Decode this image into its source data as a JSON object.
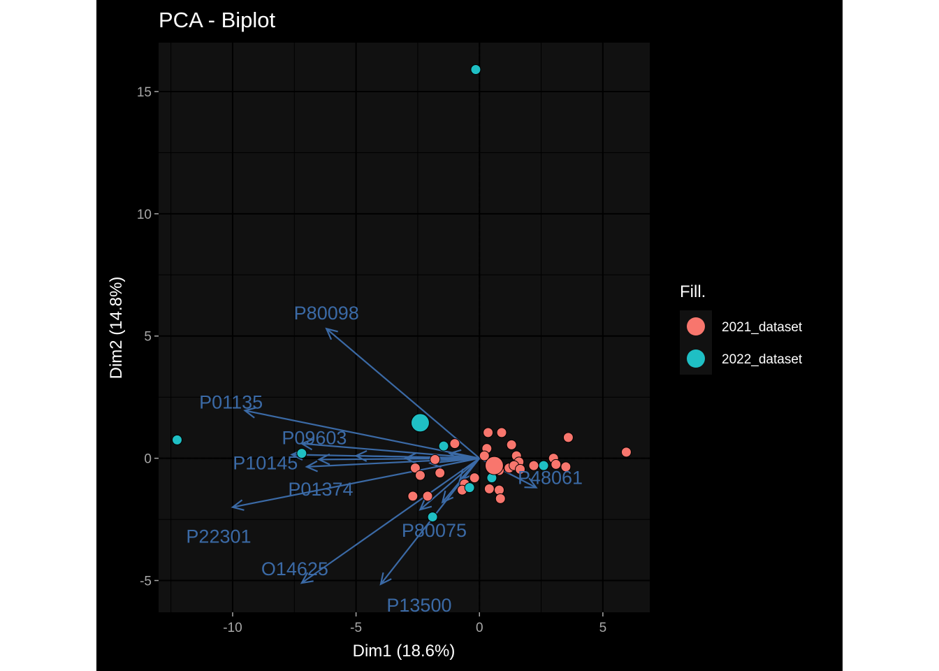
{
  "chart_data": {
    "type": "scatter",
    "title": "PCA - Biplot",
    "xlabel": "Dim1 (18.6%)",
    "ylabel": "Dim2 (14.8%)",
    "xlim": [
      -13.0,
      6.9
    ],
    "ylim": [
      -6.3,
      17.0
    ],
    "x_ticks": [
      -10,
      -5,
      0,
      5
    ],
    "x_tick_labels": [
      "-10",
      "-5",
      "0",
      "5"
    ],
    "y_ticks": [
      -5,
      0,
      5,
      10,
      15
    ],
    "y_tick_labels": [
      "-5",
      "0",
      "5",
      "10",
      "15"
    ],
    "grid": true,
    "legend": {
      "title": "Fill.",
      "position": "right",
      "entries": [
        {
          "label": "2021_dataset",
          "color": "#f8766d"
        },
        {
          "label": "2022_dataset",
          "color": "#1fbfc4"
        }
      ]
    },
    "colors": {
      "panel": "#111111",
      "arrow": "#3b6aa6",
      "grid": "#000000"
    },
    "series": [
      {
        "name": "2021_dataset",
        "color": "#f8766d",
        "points": [
          [
            0.35,
            1.05
          ],
          [
            0.9,
            1.05
          ],
          [
            1.3,
            0.55
          ],
          [
            3.6,
            0.85
          ],
          [
            5.95,
            0.25
          ],
          [
            -1.0,
            0.6
          ],
          [
            0.3,
            0.4
          ],
          [
            1.5,
            0.1
          ],
          [
            1.6,
            -0.15
          ],
          [
            2.2,
            -0.3
          ],
          [
            3.0,
            0.0
          ],
          [
            3.1,
            -0.25
          ],
          [
            3.5,
            -0.35
          ],
          [
            0.8,
            -0.5
          ],
          [
            1.2,
            -0.4
          ],
          [
            1.4,
            -0.3
          ],
          [
            1.65,
            -0.45
          ],
          [
            0.2,
            0.1
          ],
          [
            -2.6,
            -0.4
          ],
          [
            -2.4,
            -0.7
          ],
          [
            -1.6,
            -0.6
          ],
          [
            -0.2,
            -0.8
          ],
          [
            0.4,
            -1.25
          ],
          [
            0.8,
            -1.3
          ],
          [
            0.85,
            -1.65
          ],
          [
            -0.6,
            -1.05
          ],
          [
            -0.7,
            -1.3
          ],
          [
            -2.7,
            -1.55
          ],
          [
            -2.1,
            -1.55
          ],
          [
            -1.8,
            -0.05
          ]
        ],
        "sizes": [
          1,
          1,
          1,
          1,
          1,
          1,
          1,
          1,
          1,
          1,
          1,
          1,
          1,
          1,
          1,
          1,
          1,
          1,
          1,
          1,
          1,
          1,
          1,
          1,
          1,
          1,
          1,
          1,
          1,
          1
        ]
      },
      {
        "name": "2022_dataset",
        "color": "#1fbfc4",
        "points": [
          [
            -0.15,
            15.9
          ],
          [
            -12.25,
            0.75
          ],
          [
            -7.2,
            0.2
          ],
          [
            -1.45,
            0.5
          ],
          [
            0.5,
            -0.8
          ],
          [
            2.6,
            -0.3
          ],
          [
            -0.4,
            -1.2
          ],
          [
            -1.9,
            -2.4
          ]
        ],
        "sizes": [
          1,
          1,
          1,
          1,
          1,
          1,
          1,
          1
        ]
      }
    ],
    "centroids": [
      {
        "series": "2022_dataset",
        "x": -2.4,
        "y": 1.45
      },
      {
        "series": "2021_dataset",
        "x": 0.6,
        "y": -0.3
      }
    ],
    "loadings": [
      {
        "name": "P80098",
        "x": -6.2,
        "y": 5.3
      },
      {
        "name": "P01135",
        "x": -9.5,
        "y": 1.95
      },
      {
        "name": "P09603",
        "x": -7.2,
        "y": 0.6
      },
      {
        "name": "P10145",
        "x": -7.6,
        "y": 0.15
      },
      {
        "name": "P01374",
        "x": -7.0,
        "y": -0.35
      },
      {
        "name": "P22301",
        "x": -10.0,
        "y": -2.0
      },
      {
        "name": "O14625",
        "x": -7.2,
        "y": -5.1
      },
      {
        "name": "P80075",
        "x": -2.4,
        "y": -2.1
      },
      {
        "name": "P13500",
        "x": -4.0,
        "y": -5.15
      },
      {
        "name": "P48061",
        "x": 2.3,
        "y": -1.2
      }
    ],
    "extra_arrows": [
      {
        "x": -6.5,
        "y": -0.05
      },
      {
        "x": -5.0,
        "y": 0.1
      },
      {
        "x": -3.0,
        "y": 0.0
      },
      {
        "x": -2.0,
        "y": -0.2
      },
      {
        "x": -1.5,
        "y": -1.8
      },
      {
        "x": -0.8,
        "y": -0.9
      },
      {
        "x": -1.2,
        "y": 0.2
      }
    ],
    "label_offsets_note": ""
  }
}
